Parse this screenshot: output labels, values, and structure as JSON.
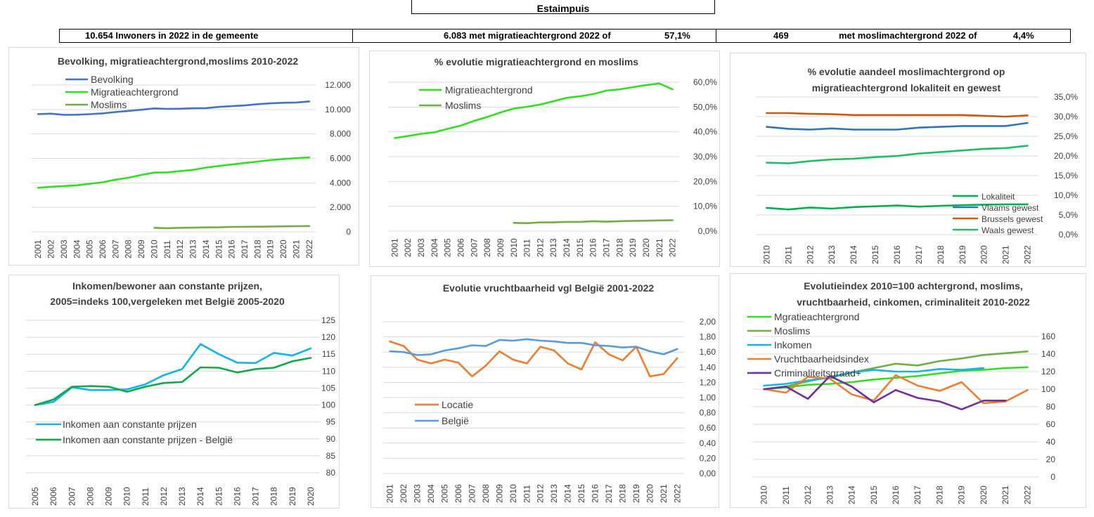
{
  "header": {
    "title": "Estaimpuis"
  },
  "summary": {
    "inhabitants": "10.654 Inwoners in 2022 in de gemeente",
    "migration": "6.083 met migratieachtergrond 2022 of",
    "migration_pct": "57,1%",
    "muslim_count": "469",
    "muslim_label": "met moslimachtergrond 2022 of",
    "muslim_pct": "4,4%"
  },
  "colors": {
    "blue": "#4472c4",
    "light_green": "#33dd22",
    "olive_green": "#70ad47",
    "orange": "#c55a11",
    "teal": "#2e75b6",
    "green": "#00b050",
    "mint": "#22bb66",
    "cyan": "#14b4e4",
    "dark_green": "#13a84c",
    "orange2": "#ed7d31",
    "steel": "#5b9bd5",
    "purple": "#7030a0"
  },
  "chart_data": [
    {
      "id": "c1",
      "type": "line",
      "title": "Bevolking, migratieachtergrond,moslims  2010-2022",
      "x": [
        "2001",
        "2002",
        "2003",
        "2004",
        "2005",
        "2006",
        "2007",
        "2008",
        "2009",
        "2010",
        "2011",
        "2012",
        "2013",
        "2014",
        "2015",
        "2016",
        "2017",
        "2018",
        "2019",
        "2020",
        "2021",
        "2022"
      ],
      "ylim": [
        0,
        12000
      ],
      "yticks": [
        "0",
        "2.000",
        "4.000",
        "6.000",
        "8.000",
        "10.000",
        "12.000"
      ],
      "series": [
        {
          "name": "Bevolking",
          "color": "#4472c4",
          "values": [
            9620,
            9660,
            9560,
            9570,
            9620,
            9680,
            9790,
            9880,
            9980,
            10090,
            10050,
            10060,
            10100,
            10110,
            10210,
            10270,
            10330,
            10430,
            10500,
            10550,
            10570,
            10654
          ]
        },
        {
          "name": "Migratieachtergrond",
          "color": "#33dd22",
          "values": [
            3600,
            3680,
            3740,
            3800,
            3920,
            4050,
            4260,
            4420,
            4650,
            4840,
            4860,
            4960,
            5060,
            5250,
            5380,
            5500,
            5620,
            5740,
            5860,
            5950,
            6020,
            6083
          ]
        },
        {
          "name": "Moslims",
          "color": "#70ad47",
          "values": [
            null,
            null,
            null,
            null,
            null,
            null,
            null,
            null,
            null,
            330,
            290,
            330,
            340,
            360,
            370,
            400,
            410,
            420,
            430,
            450,
            460,
            469
          ]
        }
      ]
    },
    {
      "id": "c2",
      "type": "line",
      "title": "% evolutie migratieachtergrond  en moslims",
      "x": [
        "2001",
        "2002",
        "2003",
        "2004",
        "2005",
        "2006",
        "2007",
        "2008",
        "2009",
        "2010",
        "2011",
        "2012",
        "2013",
        "2014",
        "2015",
        "2016",
        "2017",
        "2018",
        "2019",
        "2020",
        "2021",
        "2022"
      ],
      "ylim": [
        0,
        60
      ],
      "yticks": [
        "0,0%",
        "10,0%",
        "20,0%",
        "30,0%",
        "40,0%",
        "50,0%",
        "60,0%"
      ],
      "series": [
        {
          "name": "Migratieachtergrond",
          "color": "#33dd22",
          "values": [
            37.5,
            38.3,
            39.2,
            39.8,
            41.2,
            42.5,
            44.4,
            46.0,
            47.8,
            49.4,
            50.1,
            51.0,
            52.3,
            53.7,
            54.3,
            55.2,
            56.6,
            57.1,
            58.0,
            58.8,
            59.5,
            57.1
          ]
        },
        {
          "name": "Moslims",
          "color": "#70ad47",
          "values": [
            null,
            null,
            null,
            null,
            null,
            null,
            null,
            null,
            null,
            3.3,
            3.2,
            3.5,
            3.5,
            3.7,
            3.7,
            4.0,
            3.8,
            4.0,
            4.1,
            4.2,
            4.3,
            4.4
          ]
        }
      ]
    },
    {
      "id": "c3",
      "type": "line",
      "title": "% evolutie aandeel moslimachtergrond op migratieachtergrond lokaliteit en gewest",
      "title_lines": [
        "% evolutie aandeel moslimachtergrond op",
        "migratieachtergrond lokaliteit en gewest"
      ],
      "x": [
        "2010",
        "2011",
        "2012",
        "2013",
        "2014",
        "2015",
        "2016",
        "2017",
        "2018",
        "2019",
        "2020",
        "2021",
        "2022"
      ],
      "ylim": [
        0,
        35
      ],
      "yticks": [
        "0,0%",
        "5,0%",
        "10,0%",
        "15,0%",
        "20,0%",
        "25,0%",
        "30,0%",
        "35,0%"
      ],
      "series": [
        {
          "name": "Lokaliteit",
          "color": "#00b050",
          "values": [
            6.8,
            6.4,
            6.9,
            6.6,
            7.0,
            7.2,
            7.4,
            7.1,
            7.3,
            7.5,
            7.6,
            7.7,
            7.7
          ]
        },
        {
          "name": "Vlaams gewest",
          "color": "#2e75b6",
          "values": [
            27.4,
            26.9,
            26.7,
            27.0,
            26.7,
            26.7,
            26.7,
            27.2,
            27.4,
            27.6,
            27.6,
            27.6,
            28.4
          ]
        },
        {
          "name": "Brussels gewest",
          "color": "#c55a11",
          "values": [
            30.9,
            30.9,
            30.7,
            30.6,
            30.4,
            30.4,
            30.4,
            30.4,
            30.4,
            30.4,
            30.2,
            30.0,
            30.3
          ]
        },
        {
          "name": "Waals gewest",
          "color": "#22bb66",
          "values": [
            18.3,
            18.1,
            18.7,
            19.1,
            19.3,
            19.7,
            20.0,
            20.6,
            21.0,
            21.4,
            21.8,
            22.0,
            22.6
          ]
        }
      ]
    },
    {
      "id": "c4",
      "type": "line",
      "title": "Inkomen/bewoner aan constante prijzen, 2005=indeks 100,vergeleken met België 2005-2020",
      "title_lines": [
        "Inkomen/bewoner aan constante prijzen,",
        "2005=indeks 100,vergeleken met België 2005-2020"
      ],
      "x": [
        "2005",
        "2006",
        "2007",
        "2008",
        "2009",
        "2010",
        "2011",
        "2012",
        "2013",
        "2014",
        "2015",
        "2016",
        "2017",
        "2018",
        "2019",
        "2020"
      ],
      "ylim": [
        80,
        125
      ],
      "yticks": [
        "80",
        "85",
        "90",
        "95",
        "100",
        "105",
        "110",
        "115",
        "120",
        "125"
      ],
      "series": [
        {
          "name": "Inkomen aan constante prijzen",
          "color": "#14b4e4",
          "values": [
            100,
            100.9,
            105.2,
            104.4,
            104.4,
            104.6,
            106.1,
            108.8,
            110.6,
            118.0,
            115.0,
            112.5,
            112.4,
            115.4,
            114.6,
            116.7
          ]
        },
        {
          "name": "Inkomen aan constante prijzen - België",
          "color": "#13a84c",
          "values": [
            100,
            101.6,
            105.4,
            105.6,
            105.4,
            103.9,
            105.4,
            106.5,
            106.8,
            111.1,
            111.0,
            109.6,
            110.6,
            111.0,
            112.9,
            113.9
          ]
        }
      ]
    },
    {
      "id": "c5",
      "type": "line",
      "title": "Evolutie vruchtbaarheid vgl België 2001-2022",
      "x": [
        "2001",
        "2002",
        "2003",
        "2004",
        "2005",
        "2006",
        "2007",
        "2008",
        "2009",
        "2010",
        "2011",
        "2012",
        "2013",
        "2014",
        "2015",
        "2016",
        "2017",
        "2018",
        "2019",
        "2020",
        "2021",
        "2022"
      ],
      "ylim": [
        0,
        2.0
      ],
      "yticks": [
        "0,00",
        "0,20",
        "0,40",
        "0,60",
        "0,80",
        "1,00",
        "1,20",
        "1,40",
        "1,60",
        "1,80",
        "2,00"
      ],
      "series": [
        {
          "name": "Locatie",
          "color": "#ed7d31",
          "values": [
            1.74,
            1.68,
            1.5,
            1.45,
            1.5,
            1.46,
            1.28,
            1.42,
            1.61,
            1.5,
            1.45,
            1.67,
            1.62,
            1.45,
            1.37,
            1.73,
            1.57,
            1.49,
            1.67,
            1.28,
            1.31,
            1.52
          ]
        },
        {
          "name": "België",
          "color": "#5b9bd5",
          "values": [
            1.61,
            1.6,
            1.56,
            1.57,
            1.62,
            1.65,
            1.69,
            1.68,
            1.76,
            1.75,
            1.77,
            1.75,
            1.74,
            1.72,
            1.72,
            1.69,
            1.68,
            1.66,
            1.67,
            1.61,
            1.57,
            1.64
          ]
        }
      ]
    },
    {
      "id": "c6",
      "type": "line",
      "title": "Evolutieindex 2010=100 achtergrond, moslims, vruchtbaarheid, cinkomen, criminaliteit  2010-2022",
      "title_lines": [
        "Evolutieindex 2010=100 achtergrond, moslims,",
        "vruchtbaarheid, cinkomen, criminaliteit  2010-2022"
      ],
      "x": [
        "2010",
        "2011",
        "2012",
        "2013",
        "2014",
        "2015",
        "2016",
        "2017",
        "2018",
        "2019",
        "2020",
        "2021",
        "2022"
      ],
      "ylim": [
        0,
        160
      ],
      "yticks": [
        "0",
        "20",
        "40",
        "60",
        "80",
        "100",
        "120",
        "140",
        "160"
      ],
      "series": [
        {
          "name": "Mgratieachtergrond",
          "color": "#33dd22",
          "values": [
            100,
            102,
            105,
            106,
            108,
            111,
            113,
            115,
            118,
            121,
            122,
            124,
            125
          ]
        },
        {
          "name": "Moslims",
          "color": "#70ad47",
          "values": [
            100,
            103,
            109,
            114,
            119,
            124,
            129,
            127,
            132,
            135,
            139,
            141,
            143
          ]
        },
        {
          "name": "Inkomen",
          "color": "#14b4e4",
          "values": [
            104,
            106,
            110,
            113,
            119,
            122,
            120,
            120,
            123,
            122,
            124,
            null,
            null
          ]
        },
        {
          "name": "Vruchtbaarheidsindex",
          "color": "#ed7d31",
          "values": [
            100,
            96,
            114,
            112,
            94,
            87,
            116,
            104,
            98,
            108,
            84,
            86,
            99
          ]
        },
        {
          "name": "Criminaliteitsgraad+",
          "color": "#7030a0",
          "values": [
            100,
            103,
            89,
            115,
            103,
            85,
            99,
            90,
            86,
            77,
            87,
            87,
            null
          ]
        }
      ]
    }
  ]
}
